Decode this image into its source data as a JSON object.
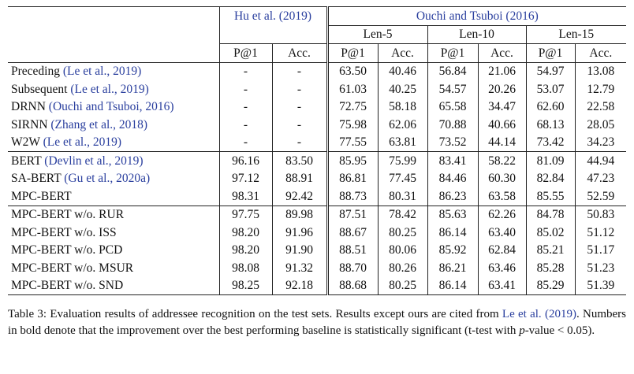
{
  "header": {
    "group1": "Hu et al. (2019)",
    "group2": "Ouchi and Tsuboi (2016)",
    "len_labels": [
      "Len-5",
      "Len-10",
      "Len-15"
    ],
    "metric_p": "P@1",
    "metric_acc": "Acc."
  },
  "sections": [
    {
      "rows": [
        {
          "name": "Preceding ",
          "cite": "(Le et al., 2019)",
          "v": [
            "-",
            "-",
            "63.50",
            "40.46",
            "56.84",
            "21.06",
            "54.97",
            "13.08"
          ],
          "bold": [
            false,
            false,
            false,
            false,
            false,
            false,
            false,
            false
          ]
        },
        {
          "name": "Subsequent ",
          "cite": "(Le et al., 2019)",
          "v": [
            "-",
            "-",
            "61.03",
            "40.25",
            "54.57",
            "20.26",
            "53.07",
            "12.79"
          ],
          "bold": [
            false,
            false,
            false,
            false,
            false,
            false,
            false,
            false
          ]
        },
        {
          "name": "DRNN ",
          "cite": "(Ouchi and Tsuboi, 2016)",
          "v": [
            "-",
            "-",
            "72.75",
            "58.18",
            "65.58",
            "34.47",
            "62.60",
            "22.58"
          ],
          "bold": [
            false,
            false,
            false,
            false,
            false,
            false,
            false,
            false
          ]
        },
        {
          "name": "SIRNN ",
          "cite": "(Zhang et al., 2018)",
          "v": [
            "-",
            "-",
            "75.98",
            "62.06",
            "70.88",
            "40.66",
            "68.13",
            "28.05"
          ],
          "bold": [
            false,
            false,
            false,
            false,
            false,
            false,
            false,
            false
          ]
        },
        {
          "name": "W2W ",
          "cite": "(Le et al., 2019)",
          "v": [
            "-",
            "-",
            "77.55",
            "63.81",
            "73.52",
            "44.14",
            "73.42",
            "34.23"
          ],
          "bold": [
            false,
            false,
            false,
            false,
            false,
            false,
            false,
            false
          ]
        }
      ]
    },
    {
      "rows": [
        {
          "name": "BERT ",
          "cite": "(Devlin et al., 2019)",
          "v": [
            "96.16",
            "83.50",
            "85.95",
            "75.99",
            "83.41",
            "58.22",
            "81.09",
            "44.94"
          ],
          "bold": [
            false,
            false,
            false,
            false,
            false,
            false,
            false,
            false
          ]
        },
        {
          "name": "SA-BERT ",
          "cite": "(Gu et al., 2020a)",
          "v": [
            "97.12",
            "88.91",
            "86.81",
            "77.45",
            "84.46",
            "60.30",
            "82.84",
            "47.23"
          ],
          "bold": [
            false,
            false,
            false,
            false,
            false,
            false,
            false,
            false
          ]
        },
        {
          "name": "MPC-BERT",
          "cite": "",
          "v": [
            "98.31",
            "92.42",
            "88.73",
            "80.31",
            "86.23",
            "63.58",
            "85.55",
            "52.59"
          ],
          "bold": [
            true,
            true,
            true,
            true,
            true,
            true,
            true,
            true
          ]
        }
      ]
    },
    {
      "rows": [
        {
          "name": "MPC-BERT w/o. RUR",
          "cite": "",
          "v": [
            "97.75",
            "89.98",
            "87.51",
            "78.42",
            "85.63",
            "62.26",
            "84.78",
            "50.83"
          ],
          "bold": [
            false,
            false,
            false,
            false,
            false,
            false,
            false,
            false
          ]
        },
        {
          "name": "MPC-BERT w/o. ISS",
          "cite": "",
          "v": [
            "98.20",
            "91.96",
            "88.67",
            "80.25",
            "86.14",
            "63.40",
            "85.02",
            "51.12"
          ],
          "bold": [
            false,
            false,
            false,
            false,
            false,
            false,
            false,
            false
          ]
        },
        {
          "name": "MPC-BERT w/o. PCD",
          "cite": "",
          "v": [
            "98.20",
            "91.90",
            "88.51",
            "80.06",
            "85.92",
            "62.84",
            "85.21",
            "51.17"
          ],
          "bold": [
            false,
            false,
            false,
            false,
            false,
            false,
            false,
            false
          ]
        },
        {
          "name": "MPC-BERT w/o. MSUR",
          "cite": "",
          "v": [
            "98.08",
            "91.32",
            "88.70",
            "80.26",
            "86.21",
            "63.46",
            "85.28",
            "51.23"
          ],
          "bold": [
            false,
            false,
            false,
            false,
            false,
            false,
            false,
            false
          ]
        },
        {
          "name": "MPC-BERT w/o. SND",
          "cite": "",
          "v": [
            "98.25",
            "92.18",
            "88.68",
            "80.25",
            "86.14",
            "63.41",
            "85.29",
            "51.39"
          ],
          "bold": [
            false,
            false,
            false,
            false,
            false,
            false,
            false,
            false
          ]
        }
      ]
    }
  ],
  "caption": {
    "part1": "Table 3: Evaluation results of addressee recognition on the test sets. Results except ours are cited from ",
    "cite_a": "Le et al.",
    "cite_b": "(2019)",
    "part2": ". Numbers in bold denote that the improvement over the best performing baseline is statistically significant (t-test with ",
    "p_var": "p",
    "part3": "-value < 0.05)."
  }
}
